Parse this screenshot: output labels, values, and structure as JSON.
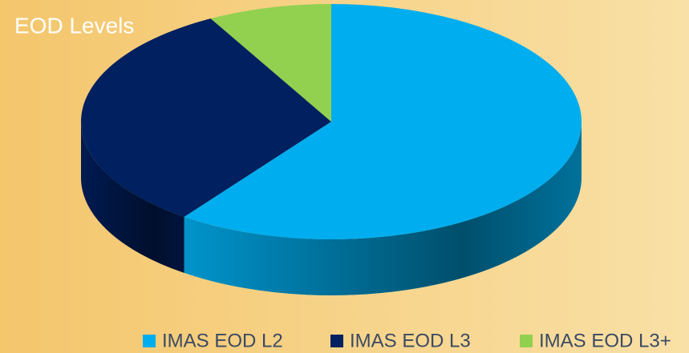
{
  "chart_data": {
    "type": "pie",
    "title": "EOD Levels",
    "categories": [
      "IMAS EOD L2",
      "IMAS EOD L3",
      "IMAS EOD L3+"
    ],
    "values": [
      60,
      32,
      8
    ],
    "colors": [
      "#00aeef",
      "#002060",
      "#92d050"
    ],
    "legend": "bottom"
  }
}
